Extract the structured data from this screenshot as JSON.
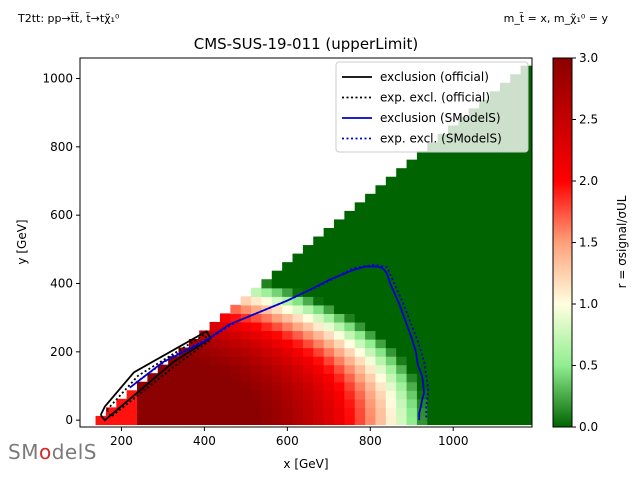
{
  "header": {
    "process_left": "T2tt: pp→t̃t̃, t̃→tχ̃₁⁰",
    "process_right": "m_t̃ = x, m_χ̃₁⁰ = y"
  },
  "logo": {
    "text_a": "SM",
    "text_b": "o",
    "text_c": "delS"
  },
  "chart_data": {
    "type": "heatmap",
    "title": "CMS-SUS-19-011 (upperLimit)",
    "xlabel": "x [GeV]",
    "ylabel": "y [GeV]",
    "xlim": [
      100,
      1190
    ],
    "ylim": [
      -20,
      1060
    ],
    "x_ticks": [
      200,
      400,
      600,
      800,
      1000
    ],
    "y_ticks": [
      0,
      200,
      400,
      600,
      800,
      1000
    ],
    "colorbar": {
      "label": "r = σsignal/σUL",
      "range": [
        0.0,
        3.0
      ],
      "ticks": [
        0.0,
        0.5,
        1.0,
        1.5,
        2.0,
        2.5,
        3.0
      ],
      "colors": [
        "#006400",
        "#90ee90",
        "#ffffe0",
        "#ffa07a",
        "#ff0000",
        "#8b0000"
      ]
    },
    "heatmap_model": {
      "x_range": [
        150,
        1175
      ],
      "y_range": [
        0,
        1035
      ],
      "cell_size_gev": 25,
      "region": "y <= x - 150",
      "r_peak": 3.0,
      "r_edge_x": 920,
      "r_edge_y": 450
    },
    "series": [
      {
        "name": "exclusion (official)",
        "color": "#000000",
        "style": "solid",
        "x": [
          150,
          160,
          230,
          405,
          415,
          325,
          160,
          150
        ],
        "y": [
          15,
          40,
          140,
          260,
          240,
          170,
          0,
          15
        ]
      },
      {
        "name": "exp. excl. (official)",
        "color": "#000000",
        "style": "dotted",
        "x": [
          165,
          240,
          400,
          410,
          330,
          175,
          165
        ],
        "y": [
          30,
          130,
          250,
          230,
          160,
          10,
          30
        ]
      },
      {
        "name": "exclusion (SModelS)",
        "color": "#0000cc",
        "style": "solid",
        "x": [
          220,
          300,
          400,
          460,
          500,
          560,
          600,
          660,
          700,
          760,
          790,
          815,
          830,
          840,
          848,
          870,
          900,
          910,
          915,
          925,
          930,
          925,
          922,
          918,
          918
        ],
        "y": [
          95,
          170,
          230,
          280,
          300,
          330,
          350,
          385,
          410,
          440,
          450,
          450,
          445,
          430,
          400,
          340,
          240,
          200,
          160,
          130,
          80,
          60,
          40,
          20,
          0
        ]
      },
      {
        "name": "exp. excl. (SModelS)",
        "color": "#0000cc",
        "style": "dotted",
        "x": [
          235,
          320,
          420,
          480,
          540,
          600,
          680,
          760,
          810,
          840,
          858,
          880,
          915,
          930,
          940,
          935,
          935
        ],
        "y": [
          110,
          185,
          245,
          290,
          320,
          350,
          395,
          445,
          455,
          448,
          400,
          340,
          230,
          170,
          90,
          40,
          0
        ]
      }
    ],
    "legend": {
      "position": "top-right"
    },
    "grid": false
  }
}
